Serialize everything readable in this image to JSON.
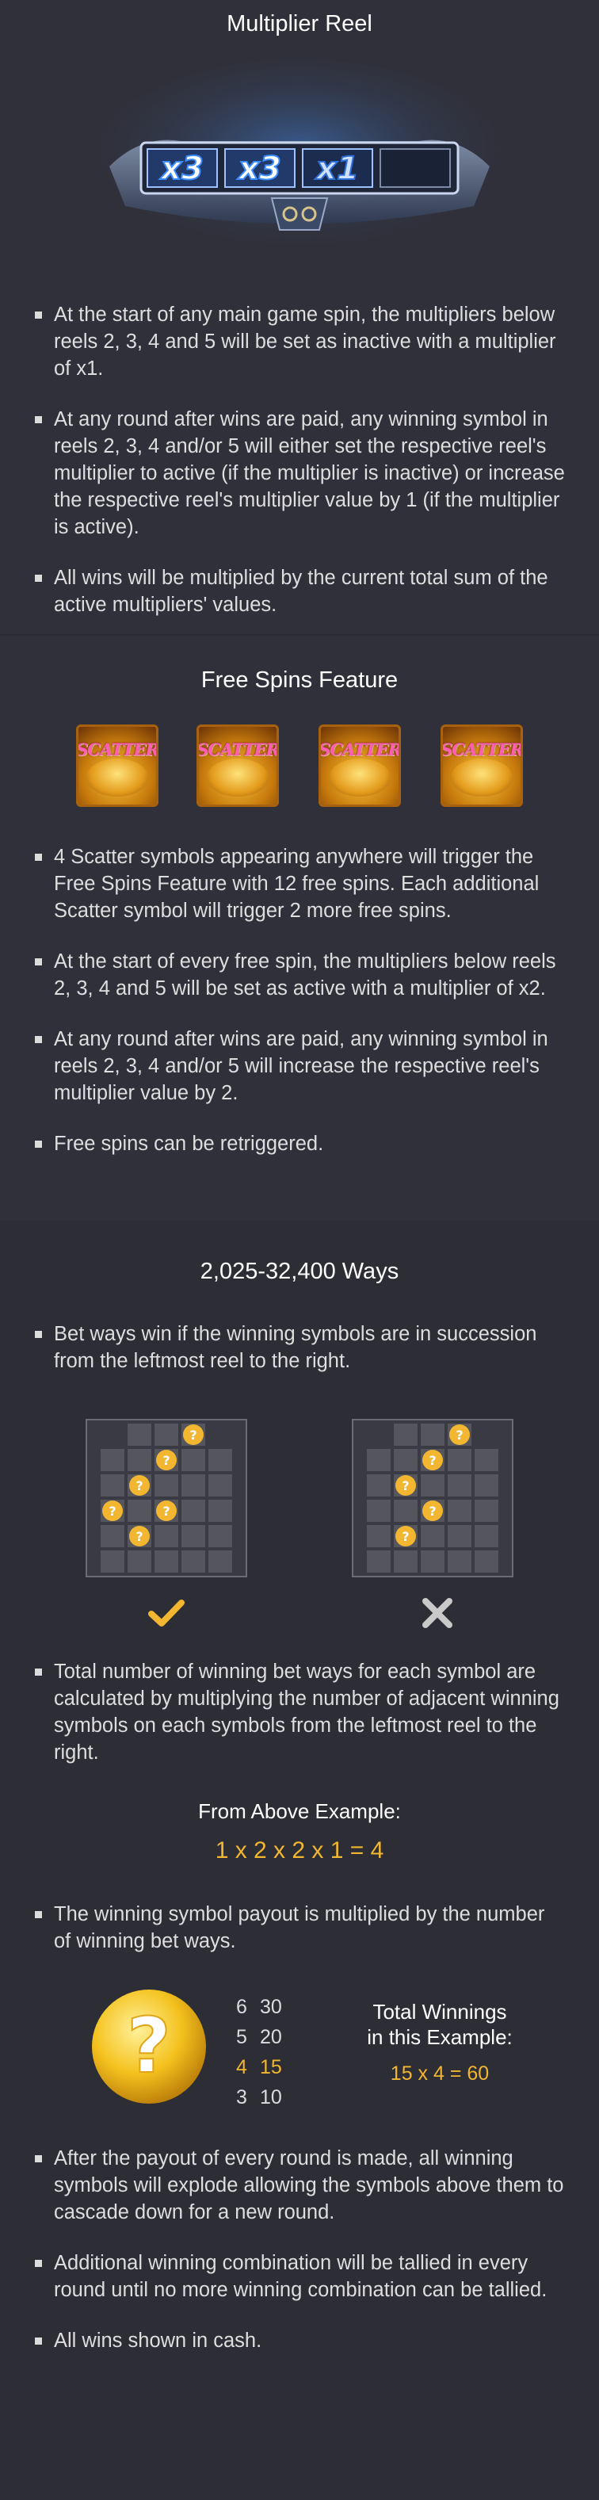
{
  "multiplier_reel": {
    "title": "Multiplier Reel",
    "reel_labels": [
      "x3",
      "x3",
      "x1"
    ],
    "bullets": [
      "At the start of any main game spin, the multipliers below reels 2, 3, 4 and 5 will be set as inactive with a multiplier of x1.",
      "At any round after wins are paid, any winning symbol in reels 2, 3, 4 and/or 5 will either set the respective reel's multiplier to active (if the multiplier is inactive) or increase the respective reel's multiplier value by 1 (if the multiplier is active).",
      "All wins will be multiplied by the current total sum of the active multipliers' values."
    ]
  },
  "free_spins": {
    "title": "Free Spins Feature",
    "scatter_label": "SCATTER",
    "bullets": [
      "4 Scatter symbols appearing anywhere will trigger the Free Spins Feature with 12 free spins. Each additional Scatter symbol will trigger 2 more free spins.",
      "At the start of every free spin, the multipliers below reels 2, 3, 4 and 5 will be set as active with a multiplier of x2.",
      "At any round after wins are paid, any winning symbol in reels 2, 3, 4 and/or 5 will increase the respective reel's multiplier value by 2.",
      "Free spins can be retriggered."
    ]
  },
  "ways": {
    "title": "2,025-32,400 Ways",
    "bullet1": "Bet ways win if the winning symbols are in succession from the leftmost reel to the right.",
    "bullet2": "Total number of winning bet ways for each symbol are calculated by multiplying the number of adjacent winning symbols on each symbols from the leftmost reel to the right.",
    "example_heading": "From Above Example:",
    "example_formula": "1 x 2 x 2 x 1 = 4",
    "bullet3": "The winning symbol payout is multiplied by the number of winning bet ways.",
    "paytable": [
      {
        "count": "6",
        "value": "30",
        "highlight": false
      },
      {
        "count": "5",
        "value": "20",
        "highlight": false
      },
      {
        "count": "4",
        "value": "15",
        "highlight": true
      },
      {
        "count": "3",
        "value": "10",
        "highlight": false
      }
    ],
    "symbol_glyph": "?",
    "total_heading_line1": "Total Winnings",
    "total_heading_line2": "in this Example:",
    "total_formula": "15 x 4 = 60",
    "bullets_end": [
      "After the payout of every round is made, all winning symbols will explode allowing the symbols above them to cascade down for a new round.",
      "Additional winning combination will be tallied in every round until no more winning combination can be tallied.",
      "All wins shown in cash."
    ]
  },
  "colors": {
    "background": "#30303a",
    "accent_gold": "#f2b630",
    "check": "#f2b630",
    "cross": "#c9c9c9"
  },
  "icons": {
    "valid": "check-icon",
    "invalid": "cross-icon"
  }
}
